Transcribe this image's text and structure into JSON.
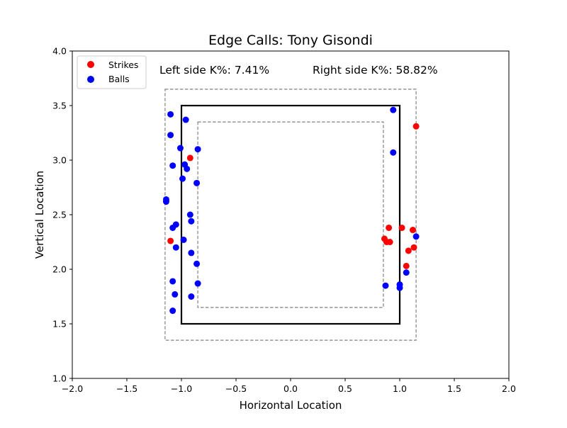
{
  "chart_data": {
    "type": "scatter",
    "title": "Edge Calls: Tony Gisondi",
    "xlabel": "Horizontal Location",
    "ylabel": "Vertical Location",
    "xlim": [
      -2.0,
      2.0
    ],
    "ylim": [
      1.0,
      4.0
    ],
    "xticks": [
      -2.0,
      -1.5,
      -1.0,
      -0.5,
      0.0,
      0.5,
      1.0,
      1.5,
      2.0
    ],
    "yticks": [
      1.0,
      1.5,
      2.0,
      2.5,
      3.0,
      3.5,
      4.0
    ],
    "xtick_labels": [
      "−2.0",
      "−1.5",
      "−1.0",
      "−0.5",
      "0.0",
      "0.5",
      "1.0",
      "1.5",
      "2.0"
    ],
    "ytick_labels": [
      "1.0",
      "1.5",
      "2.0",
      "2.5",
      "3.0",
      "3.5",
      "4.0"
    ],
    "grid": false,
    "legend_position": "top-left",
    "annotations": {
      "left": "Left side K%: 7.41%",
      "right": "Right side K%: 58.82%"
    },
    "zones": [
      {
        "name": "strike-zone",
        "style": "solid",
        "x": [
          -1.0,
          1.0
        ],
        "y": [
          1.5,
          3.5
        ]
      },
      {
        "name": "outer-edge",
        "style": "dashed",
        "x": [
          -1.15,
          1.15
        ],
        "y": [
          1.35,
          3.65
        ]
      },
      {
        "name": "inner-edge",
        "style": "dashed",
        "x": [
          -0.85,
          0.85
        ],
        "y": [
          1.65,
          3.35
        ]
      }
    ],
    "series": [
      {
        "name": "Strikes",
        "color": "#ff0000",
        "points": [
          [
            -0.92,
            3.02
          ],
          [
            -1.1,
            2.26
          ],
          [
            1.15,
            3.31
          ],
          [
            1.12,
            2.36
          ],
          [
            0.9,
            2.38
          ],
          [
            1.02,
            2.38
          ],
          [
            0.86,
            2.28
          ],
          [
            0.88,
            2.25
          ],
          [
            0.91,
            2.25
          ],
          [
            1.08,
            2.17
          ],
          [
            1.13,
            2.2
          ],
          [
            1.06,
            2.03
          ]
        ]
      },
      {
        "name": "Balls",
        "color": "#0000ff",
        "points": [
          [
            -1.1,
            3.42
          ],
          [
            -0.96,
            3.37
          ],
          [
            -1.1,
            3.23
          ],
          [
            -1.01,
            3.11
          ],
          [
            -0.85,
            3.1
          ],
          [
            -1.08,
            2.95
          ],
          [
            -0.97,
            2.96
          ],
          [
            -0.95,
            2.92
          ],
          [
            -0.99,
            2.83
          ],
          [
            -0.86,
            2.79
          ],
          [
            -1.14,
            2.62
          ],
          [
            -1.14,
            2.64
          ],
          [
            -0.92,
            2.5
          ],
          [
            -1.05,
            2.41
          ],
          [
            -1.08,
            2.38
          ],
          [
            -0.91,
            2.44
          ],
          [
            -0.98,
            2.27
          ],
          [
            -1.05,
            2.2
          ],
          [
            -0.91,
            2.15
          ],
          [
            -0.86,
            2.05
          ],
          [
            -1.08,
            1.89
          ],
          [
            -0.85,
            1.87
          ],
          [
            -1.06,
            1.77
          ],
          [
            -0.91,
            1.75
          ],
          [
            -1.08,
            1.62
          ],
          [
            0.94,
            3.46
          ],
          [
            0.94,
            3.07
          ],
          [
            1.15,
            2.3
          ],
          [
            1.06,
            1.97
          ],
          [
            0.87,
            1.85
          ],
          [
            1.0,
            1.86
          ],
          [
            1.0,
            1.83
          ]
        ]
      }
    ]
  }
}
